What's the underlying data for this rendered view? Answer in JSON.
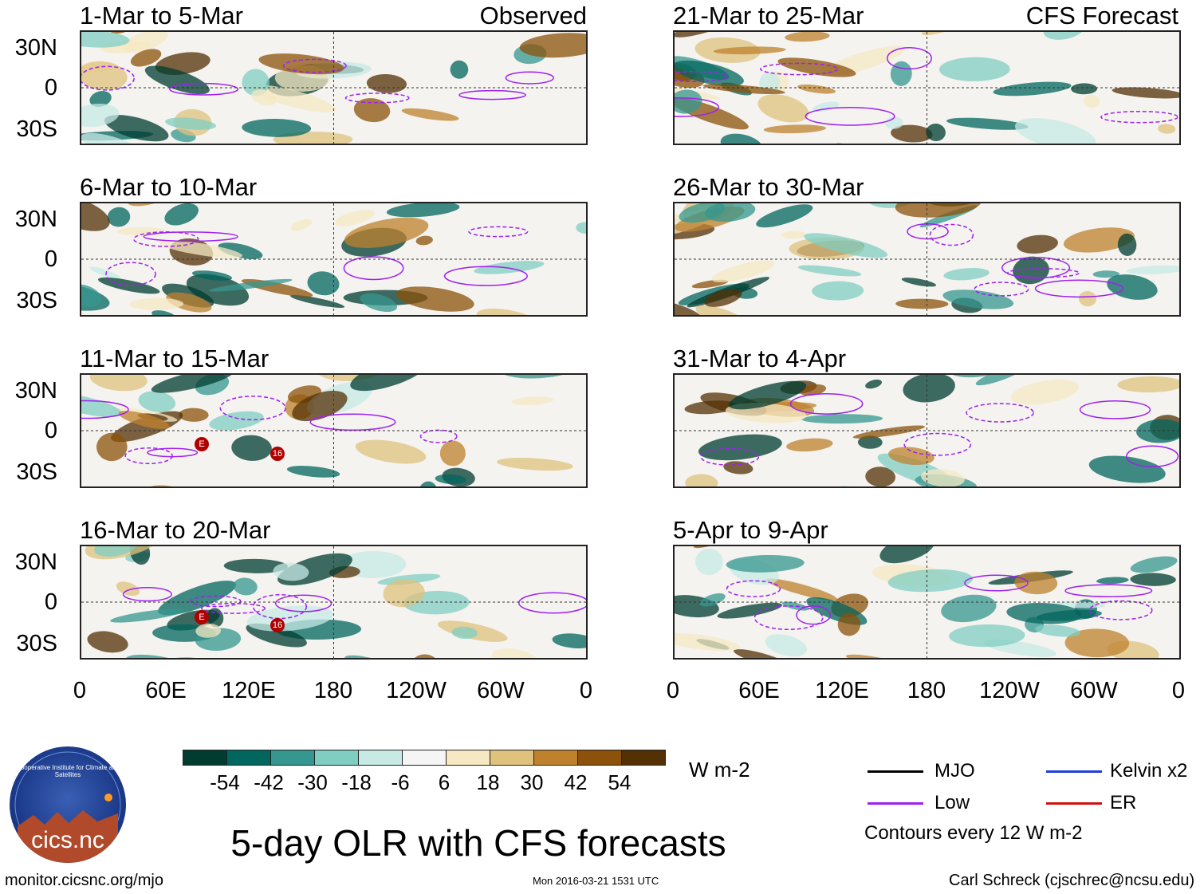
{
  "title": "5-day OLR with CFS forecasts",
  "observed_label": "Observed",
  "forecast_label": "CFS Forecast",
  "panels_left": [
    {
      "title": "1-Mar to 5-Mar",
      "tag": "Observed"
    },
    {
      "title": "6-Mar to 10-Mar"
    },
    {
      "title": "11-Mar to 15-Mar"
    },
    {
      "title": "16-Mar to 20-Mar"
    }
  ],
  "panels_right": [
    {
      "title": "21-Mar to 25-Mar",
      "tag": "CFS Forecast"
    },
    {
      "title": "26-Mar to 30-Mar"
    },
    {
      "title": "31-Mar to 4-Apr"
    },
    {
      "title": "5-Apr to 9-Apr"
    }
  ],
  "y_ticks": [
    "30N",
    "0",
    "30S"
  ],
  "x_ticks": [
    "0",
    "60E",
    "120E",
    "180",
    "120W",
    "60W",
    "0"
  ],
  "storm_markers": [
    {
      "panel": "11-Mar to 15-Mar",
      "label": "E"
    },
    {
      "panel": "11-Mar to 15-Mar",
      "label": "16"
    },
    {
      "panel": "16-Mar to 20-Mar",
      "label": "E"
    },
    {
      "panel": "16-Mar to 20-Mar",
      "label": "16"
    }
  ],
  "colorbar": {
    "unit": "W m-2",
    "ticks": [
      "-54",
      "-42",
      "-30",
      "-18",
      "-6",
      "6",
      "18",
      "30",
      "42",
      "54"
    ],
    "colors": [
      "#003c30",
      "#01665e",
      "#35978f",
      "#80cdc1",
      "#c7eae5",
      "#f5f5f5",
      "#f6e8c3",
      "#dfc27d",
      "#bf812d",
      "#8c510a",
      "#543005"
    ]
  },
  "legend": {
    "items": [
      {
        "label": "MJO",
        "color": "#000000"
      },
      {
        "label": "Kelvin x2",
        "color": "#1f3fd6"
      },
      {
        "label": "Low",
        "color": "#a020f0"
      },
      {
        "label": "ER",
        "color": "#d01010"
      }
    ],
    "note": "Contours every 12 W m-2"
  },
  "footer": {
    "url": "monitor.cicsnc.org/mjo",
    "timestamp": "Mon 2016-03-21 1531 UTC",
    "credit": "Carl Schreck (cjschrec@ncsu.edu)"
  },
  "logo": {
    "text": "cics.nc",
    "ring": "Cooperative Institute for Climate and Satellites"
  }
}
